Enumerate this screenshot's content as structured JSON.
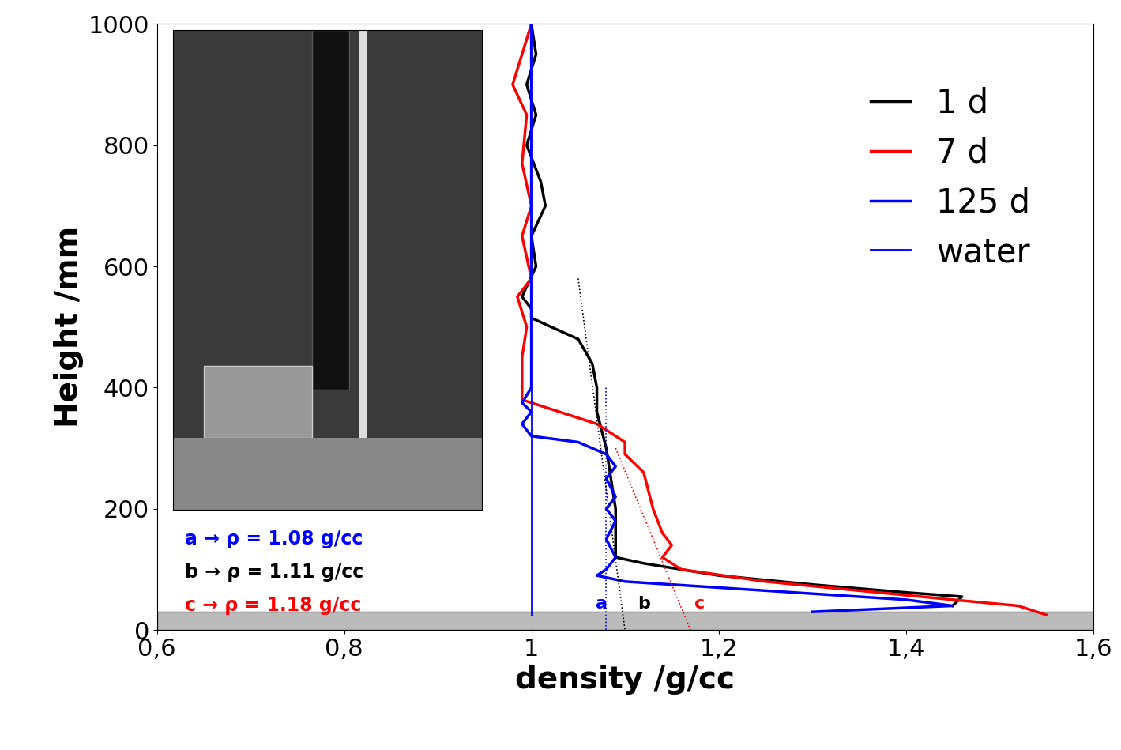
{
  "chart_data": {
    "type": "line",
    "x_label": "density /g/cc",
    "y_label": "Height /mm",
    "xlim": [
      0.6,
      1.6
    ],
    "xticks": [
      {
        "value": 0.6,
        "label": "0,6"
      },
      {
        "value": 0.8,
        "label": "0,8"
      },
      1,
      {
        "value": 1.2,
        "label": "1,2"
      },
      {
        "value": 1.4,
        "label": "1,4"
      },
      {
        "value": 1.6,
        "label": "1,6"
      }
    ],
    "ylim": [
      0,
      1000
    ],
    "yticks": [
      0,
      200,
      400,
      600,
      800,
      1000
    ],
    "grid": false,
    "legend": "upper right",
    "series": [
      {
        "name": "1 d",
        "color": "#000000",
        "line_style": "solid",
        "x": [
          1.0,
          1.005,
          0.995,
          1.005,
          0.995,
          1.01,
          1.015,
          1.0,
          1.005,
          0.99,
          1.0,
          1.0,
          1.05,
          1.065,
          1.07,
          1.07,
          1.075,
          1.08,
          1.085,
          1.09,
          1.09,
          1.09,
          1.12,
          1.2,
          1.3,
          1.4,
          1.46,
          1.45
        ],
        "values": [
          1000,
          950,
          900,
          850,
          800,
          740,
          700,
          650,
          600,
          550,
          530,
          515,
          480,
          440,
          400,
          360,
          330,
          300,
          250,
          200,
          150,
          120,
          110,
          90,
          75,
          62,
          55,
          40
        ]
      },
      {
        "name": "7 d",
        "color": "#ff0000",
        "line_style": "solid",
        "x": [
          1.0,
          0.99,
          0.98,
          0.995,
          0.99,
          1.0,
          0.99,
          1.0,
          0.985,
          0.995,
          0.99,
          0.99,
          1.03,
          1.07,
          1.1,
          1.1,
          1.12,
          1.13,
          1.14,
          1.15,
          1.14,
          1.16,
          1.25,
          1.35,
          1.45,
          1.52,
          1.54,
          1.55
        ],
        "values": [
          1000,
          950,
          900,
          850,
          770,
          700,
          650,
          580,
          550,
          500,
          450,
          380,
          360,
          340,
          310,
          290,
          260,
          200,
          160,
          140,
          120,
          100,
          80,
          65,
          50,
          40,
          30,
          25
        ]
      },
      {
        "name": "125 d",
        "color": "#0000ff",
        "line_style": "solid",
        "x": [
          1.0,
          1.0,
          1.0,
          0.99,
          1.0,
          0.99,
          1.0,
          1.05,
          1.08,
          1.09,
          1.08,
          1.09,
          1.08,
          1.09,
          1.08,
          1.09,
          1.08,
          1.07,
          1.1,
          1.2,
          1.3,
          1.4,
          1.45,
          1.3
        ],
        "values": [
          1000,
          700,
          400,
          375,
          360,
          340,
          320,
          310,
          290,
          270,
          250,
          220,
          200,
          180,
          150,
          120,
          100,
          90,
          80,
          70,
          60,
          50,
          40,
          30
        ]
      },
      {
        "name": "water",
        "color": "#0000ff",
        "line_style": "solid",
        "x": [
          1.0,
          1.0
        ],
        "values": [
          25,
          1000
        ]
      }
    ],
    "extrapolations": [
      {
        "color": "#0000ff",
        "line_style": "dotted",
        "x": [
          1.08,
          1.08
        ],
        "values": [
          0,
          400
        ]
      },
      {
        "color": "#000000",
        "line_style": "dotted",
        "x": [
          1.05,
          1.1
        ],
        "values": [
          580,
          0
        ]
      },
      {
        "color": "#ff0000",
        "line_style": "dotted",
        "x": [
          1.09,
          1.17
        ],
        "values": [
          300,
          0
        ]
      }
    ],
    "annotations": [
      {
        "text": "a",
        "color": "#0000ff",
        "x": 1.075,
        "y": 30
      },
      {
        "text": "b",
        "color": "#000000",
        "x": 1.12,
        "y": 30
      },
      {
        "text": "c",
        "color": "#ff0000",
        "x": 1.18,
        "y": 30
      }
    ],
    "notes": [
      {
        "text": "a → ρ = 1.08 g/cc",
        "color": "#0000ff"
      },
      {
        "text": "b → ρ = 1.11 g/cc",
        "color": "#000000"
      },
      {
        "text": "c → ρ = 1.18 g/cc",
        "color": "#ff0000"
      }
    ]
  }
}
